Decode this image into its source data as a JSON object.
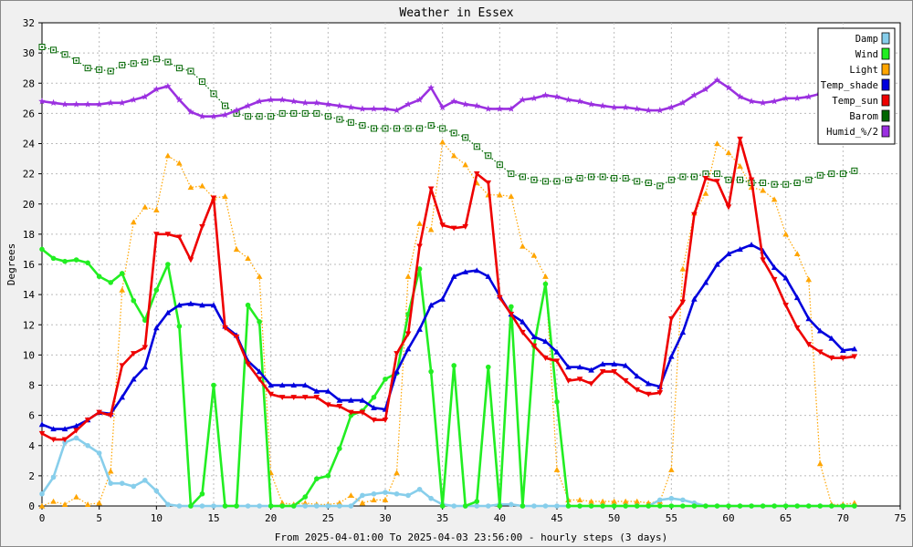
{
  "chart_data": {
    "type": "line",
    "title": "Weather in Essex",
    "xlabel": "From 2025-04-01:00 To 2025-04-03 23:56:00 - hourly steps (3 days)",
    "ylabel": "Degrees",
    "xlim": [
      0,
      75
    ],
    "ylim": [
      0,
      32
    ],
    "x_ticks": [
      "0",
      "5",
      "10",
      "15",
      "20",
      "25",
      "30",
      "35",
      "40",
      "45",
      "50",
      "55",
      "60",
      "65",
      "70",
      "75"
    ],
    "y_ticks": [
      "0",
      "2",
      "4",
      "6",
      "8",
      "10",
      "12",
      "14",
      "16",
      "18",
      "20",
      "22",
      "24",
      "26",
      "28",
      "30",
      "32"
    ],
    "grid": true,
    "legend_position": "top-right",
    "series": [
      {
        "name": "Damp",
        "color": "#87ceeb",
        "marker": "circle",
        "line": "solid",
        "values": [
          0.8,
          1.9,
          4.2,
          4.5,
          4.0,
          3.5,
          1.5,
          1.5,
          1.3,
          1.7,
          1.0,
          0.1,
          0,
          0,
          0,
          0,
          0,
          0,
          0,
          0,
          0,
          0,
          0,
          0,
          0,
          0,
          0,
          0,
          0.7,
          0.8,
          0.9,
          0.8,
          0.7,
          1.1,
          0.5,
          0.1,
          0,
          0,
          0,
          0,
          0.1,
          0.1,
          0,
          0,
          0,
          0,
          0,
          0,
          0,
          0,
          0,
          0,
          0,
          0,
          0.4,
          0.5,
          0.4,
          0.2,
          0,
          0,
          0,
          0,
          0,
          0,
          0,
          0,
          0,
          0,
          0,
          0,
          0,
          0
        ]
      },
      {
        "name": "Wind",
        "color": "#22ee22",
        "marker": "circle",
        "line": "solid",
        "values": [
          17,
          16.4,
          16.2,
          16.3,
          16.1,
          15.2,
          14.8,
          15.4,
          13.6,
          12.3,
          14.3,
          16.0,
          11.9,
          0,
          0.8,
          8.0,
          0,
          0,
          13.3,
          12.2,
          0,
          0,
          0,
          0.6,
          1.8,
          2.0,
          3.8,
          6.0,
          6.3,
          7.2,
          8.4,
          8.8,
          12.7,
          15.7,
          8.9,
          0,
          9.3,
          0,
          0.3,
          9.2,
          0,
          13.2,
          0,
          10.6,
          14.7,
          6.9,
          0,
          0,
          0,
          0,
          0,
          0,
          0,
          0,
          0,
          0,
          0,
          0,
          0,
          0,
          0,
          0,
          0,
          0,
          0,
          0,
          0,
          0,
          0,
          0,
          0,
          0
        ]
      },
      {
        "name": "Light",
        "color": "#ffa500",
        "marker": "triangle",
        "line": "dotted",
        "values": [
          0,
          0.3,
          0.1,
          0.6,
          0.1,
          0.2,
          2.3,
          14.3,
          18.8,
          19.8,
          19.6,
          23.2,
          22.7,
          21.1,
          21.2,
          20.4,
          20.5,
          17.0,
          16.4,
          15.2,
          2.2,
          0.2,
          0.1,
          0.2,
          0.1,
          0.1,
          0.2,
          0.7,
          0.2,
          0.4,
          0.4,
          2.2,
          15.2,
          18.7,
          18.3,
          24.1,
          23.2,
          22.6,
          21.4,
          20.6,
          20.6,
          20.5,
          17.2,
          16.6,
          15.2,
          2.4,
          0.4,
          0.4,
          0.3,
          0.3,
          0.3,
          0.3,
          0.3,
          0.2,
          0.3,
          2.4,
          15.7,
          19.4,
          20.7,
          24.0,
          23.4,
          22.5,
          21.1,
          20.9,
          20.3,
          18.0,
          16.7,
          15.0,
          2.8,
          0.1,
          0.1,
          0.2
        ]
      },
      {
        "name": "Temp_shade",
        "color": "#0000dd",
        "marker": "triangle",
        "line": "solid",
        "values": [
          5.4,
          5.1,
          5.1,
          5.3,
          5.7,
          6.2,
          6.1,
          7.2,
          8.4,
          9.2,
          11.8,
          12.8,
          13.3,
          13.4,
          13.3,
          13.3,
          11.9,
          11.3,
          9.6,
          8.9,
          8.0,
          8.0,
          8.0,
          8.0,
          7.6,
          7.6,
          7.0,
          7.0,
          7.0,
          6.5,
          6.4,
          8.9,
          10.4,
          11.7,
          13.3,
          13.7,
          15.2,
          15.5,
          15.6,
          15.2,
          13.9,
          12.7,
          12.2,
          11.2,
          10.9,
          10.2,
          9.2,
          9.2,
          9.0,
          9.4,
          9.4,
          9.3,
          8.6,
          8.1,
          7.9,
          9.9,
          11.5,
          13.7,
          14.8,
          16.0,
          16.7,
          17.0,
          17.3,
          16.9,
          15.8,
          15.1,
          13.8,
          12.4,
          11.6,
          11.1,
          10.3,
          10.4
        ]
      },
      {
        "name": "Temp_sun",
        "color": "#ee0000",
        "marker": "triangle-down",
        "line": "solid",
        "values": [
          4.8,
          4.4,
          4.4,
          5.0,
          5.7,
          6.2,
          6.0,
          9.3,
          10.1,
          10.5,
          18.0,
          18.0,
          17.8,
          16.3,
          18.5,
          20.4,
          11.8,
          11.2,
          9.4,
          8.4,
          7.4,
          7.2,
          7.2,
          7.2,
          7.2,
          6.7,
          6.6,
          6.2,
          6.2,
          5.7,
          5.7,
          10.1,
          11.4,
          17.2,
          21.0,
          18.6,
          18.4,
          18.5,
          22.0,
          21.4,
          13.8,
          12.7,
          11.5,
          10.6,
          9.8,
          9.6,
          8.3,
          8.4,
          8.1,
          8.9,
          8.9,
          8.3,
          7.7,
          7.4,
          7.5,
          12.4,
          13.5,
          19.3,
          21.7,
          21.5,
          19.8,
          24.3,
          21.6,
          16.3,
          15.0,
          13.3,
          11.8,
          10.7,
          10.2,
          9.8,
          9.8,
          9.9
        ]
      },
      {
        "name": "Barom",
        "color": "#006600",
        "marker": "square",
        "line": "dotted",
        "values": [
          30.4,
          30.2,
          29.9,
          29.5,
          29.0,
          28.9,
          28.8,
          29.2,
          29.3,
          29.4,
          29.6,
          29.4,
          29.0,
          28.8,
          28.1,
          27.3,
          26.5,
          26.0,
          25.8,
          25.8,
          25.8,
          26.0,
          26.0,
          26.0,
          26.0,
          25.8,
          25.6,
          25.4,
          25.2,
          25.0,
          25.0,
          25.0,
          25.0,
          25.0,
          25.2,
          25.0,
          24.7,
          24.4,
          23.8,
          23.2,
          22.6,
          22.0,
          21.8,
          21.6,
          21.5,
          21.5,
          21.6,
          21.7,
          21.8,
          21.8,
          21.7,
          21.7,
          21.5,
          21.4,
          21.2,
          21.6,
          21.8,
          21.8,
          22.0,
          22.0,
          21.6,
          21.6,
          21.4,
          21.4,
          21.3,
          21.3,
          21.4,
          21.6,
          21.9,
          22.0,
          22.0,
          22.2
        ]
      },
      {
        "name": "Humid_%/2",
        "color": "#9b30e0",
        "marker": "star",
        "line": "solid",
        "values": [
          26.8,
          26.7,
          26.6,
          26.6,
          26.6,
          26.6,
          26.7,
          26.7,
          26.9,
          27.1,
          27.6,
          27.8,
          26.9,
          26.1,
          25.8,
          25.8,
          25.9,
          26.2,
          26.5,
          26.8,
          26.9,
          26.9,
          26.8,
          26.7,
          26.7,
          26.6,
          26.5,
          26.4,
          26.3,
          26.3,
          26.3,
          26.2,
          26.6,
          26.9,
          27.7,
          26.4,
          26.8,
          26.6,
          26.5,
          26.3,
          26.3,
          26.3,
          26.9,
          27.0,
          27.2,
          27.1,
          26.9,
          26.8,
          26.6,
          26.5,
          26.4,
          26.4,
          26.3,
          26.2,
          26.2,
          26.4,
          26.7,
          27.2,
          27.6,
          28.2,
          27.7,
          27.1,
          26.8,
          26.7,
          26.8,
          27.0,
          27.0,
          27.1,
          27.3,
          27.4,
          27.1,
          26.8
        ]
      }
    ]
  }
}
